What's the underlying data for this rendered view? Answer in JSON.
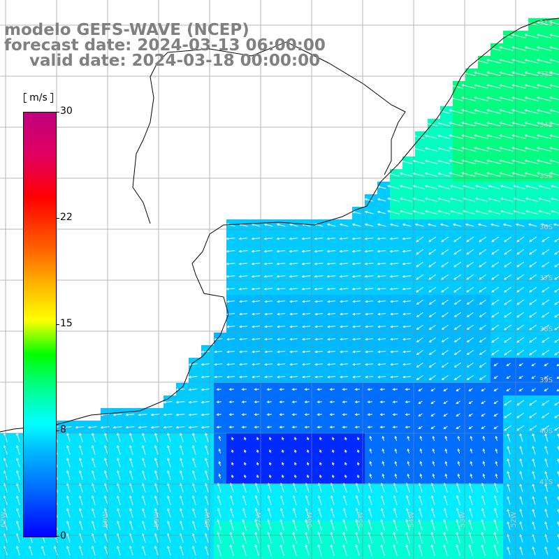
{
  "header": {
    "model": "modelo GEFS-WAVE (NCEP)",
    "forecast": "forecast date: 2024-03-13 06:00:00",
    "valid": "valid date: 2024-03-18 00:00:00"
  },
  "colorbar": {
    "unit": "m/s",
    "min": 0,
    "max": 30,
    "ticks": [
      "30",
      "22",
      "15",
      "8",
      "0"
    ],
    "tick_values": [
      30,
      22,
      15,
      8,
      0
    ]
  },
  "map": {
    "projection": "lat-lon grid",
    "field": "wind speed with direction arrows",
    "land_color": "#ffffff",
    "coastline_color": "#000000",
    "grid_color": "#888888",
    "lat_labels": [
      "31S",
      "33S",
      "34S",
      "35S",
      "36S",
      "37S",
      "38S",
      "39S",
      "40S",
      "41S"
    ],
    "lon_labels": [
      "62W",
      "61W",
      "60W",
      "59W",
      "58W",
      "57W",
      "56W",
      "55W",
      "54W",
      "53W",
      "52W"
    ]
  }
}
